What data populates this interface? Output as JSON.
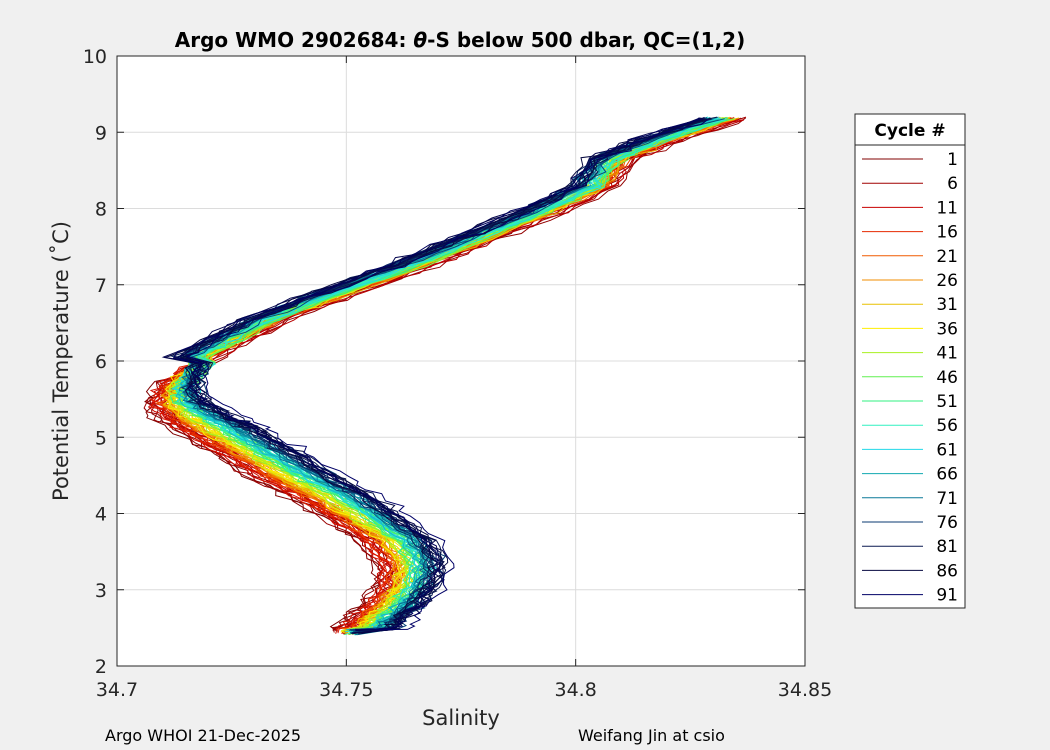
{
  "chart_data": {
    "type": "line",
    "title_prefix": "Argo WMO 2902684: ",
    "title_symbol": "θ",
    "title_suffix": "-S below 500 dbar,  QC=(1,2)",
    "xlabel": "Salinity",
    "ylabel": "Potential Temperature (˚C)",
    "xlim": [
      34.7,
      34.85
    ],
    "ylim": [
      2,
      10
    ],
    "xticks": [
      34.7,
      34.75,
      34.8,
      34.85
    ],
    "xtick_labels": [
      "34.7",
      "34.75",
      "34.8",
      "34.85"
    ],
    "yticks": [
      2,
      3,
      4,
      5,
      6,
      7,
      8,
      9,
      10
    ],
    "ytick_labels": [
      "2",
      "3",
      "4",
      "5",
      "6",
      "7",
      "8",
      "9",
      "10"
    ],
    "grid": true,
    "legend": {
      "title": "Cycle #",
      "placement": "outside-right",
      "entries": [
        {
          "label": "1",
          "color": "#800000"
        },
        {
          "label": "6",
          "color": "#a00000"
        },
        {
          "label": "11",
          "color": "#c80000"
        },
        {
          "label": "16",
          "color": "#e62a00"
        },
        {
          "label": "21",
          "color": "#f05a00"
        },
        {
          "label": "26",
          "color": "#f08c00"
        },
        {
          "label": "31",
          "color": "#e8c000"
        },
        {
          "label": "36",
          "color": "#ffee00"
        },
        {
          "label": "41",
          "color": "#a8f020"
        },
        {
          "label": "46",
          "color": "#60f050"
        },
        {
          "label": "51",
          "color": "#30f080"
        },
        {
          "label": "56",
          "color": "#30f0c0"
        },
        {
          "label": "61",
          "color": "#20d8e8"
        },
        {
          "label": "66",
          "color": "#10a8b0"
        },
        {
          "label": "71",
          "color": "#0a7898"
        },
        {
          "label": "76",
          "color": "#0a3870"
        },
        {
          "label": "81",
          "color": "#0a1850"
        },
        {
          "label": "86",
          "color": "#060840"
        },
        {
          "label": "91",
          "color": "#000066"
        }
      ]
    },
    "profile_template": [
      [
        34.836,
        9.18
      ],
      [
        34.822,
        8.9
      ],
      [
        34.812,
        8.65
      ],
      [
        34.808,
        8.3
      ],
      [
        34.796,
        7.95
      ],
      [
        34.782,
        7.6
      ],
      [
        34.768,
        7.25
      ],
      [
        34.752,
        6.9
      ],
      [
        34.737,
        6.55
      ],
      [
        34.726,
        6.2
      ],
      [
        34.716,
        5.9
      ],
      [
        34.71,
        5.65
      ],
      [
        34.708,
        5.45
      ],
      [
        34.71,
        5.25
      ],
      [
        34.715,
        5.05
      ],
      [
        34.722,
        4.8
      ],
      [
        34.73,
        4.5
      ],
      [
        34.738,
        4.25
      ],
      [
        34.746,
        3.95
      ],
      [
        34.754,
        3.65
      ],
      [
        34.758,
        3.35
      ],
      [
        34.758,
        3.05
      ],
      [
        34.755,
        2.8
      ],
      [
        34.751,
        2.6
      ],
      [
        34.749,
        2.45
      ]
    ],
    "series_offset_model": "per-cycle salinity shift: up to -0.008 in warm segment, up to +0.018 in mid segment, up to +0.012 in cold segment, from cycle 1 to 91"
  },
  "footer": {
    "left": "Argo WHOI 21-Dec-2025",
    "right": "Weifang Jin at csio"
  }
}
